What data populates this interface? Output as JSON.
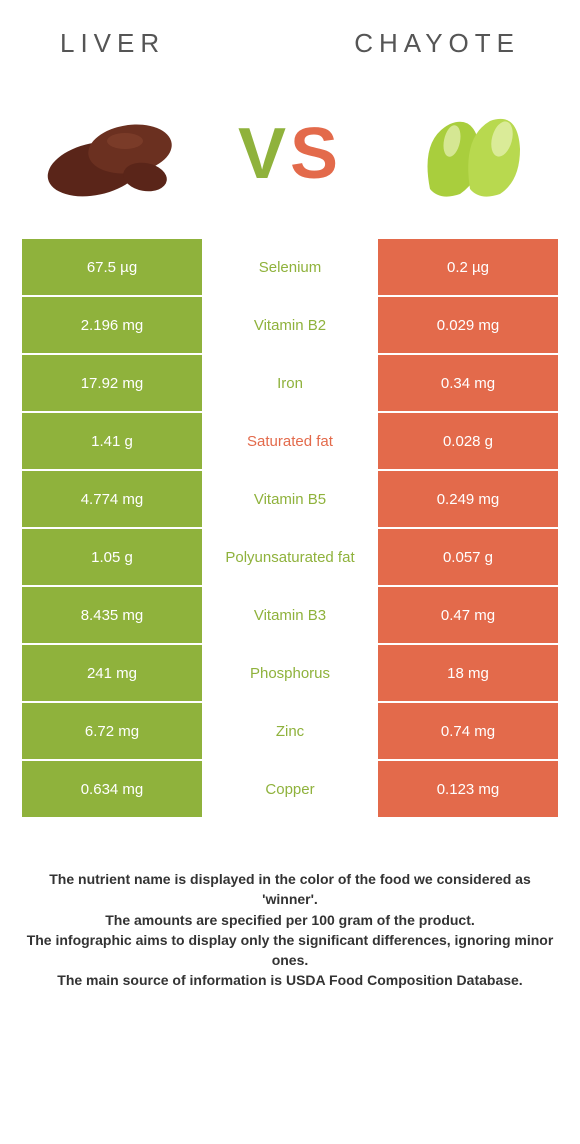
{
  "header": {
    "left_title": "Liver",
    "right_title": "Chayote"
  },
  "vs": {
    "v": "V",
    "s": "S"
  },
  "colors": {
    "left_bg": "#8fb23c",
    "right_bg": "#e36a4b",
    "mid_winner_left": "#8fb23c",
    "mid_winner_right": "#e36a4b"
  },
  "comparison": {
    "type": "table",
    "rows": [
      {
        "left": "67.5 µg",
        "label": "Selenium",
        "right": "0.2 µg",
        "winner": "left"
      },
      {
        "left": "2.196 mg",
        "label": "Vitamin B2",
        "right": "0.029 mg",
        "winner": "left"
      },
      {
        "left": "17.92 mg",
        "label": "Iron",
        "right": "0.34 mg",
        "winner": "left"
      },
      {
        "left": "1.41 g",
        "label": "Saturated fat",
        "right": "0.028 g",
        "winner": "right"
      },
      {
        "left": "4.774 mg",
        "label": "Vitamin B5",
        "right": "0.249 mg",
        "winner": "left"
      },
      {
        "left": "1.05 g",
        "label": "Polyunsaturated fat",
        "right": "0.057 g",
        "winner": "left"
      },
      {
        "left": "8.435 mg",
        "label": "Vitamin B3",
        "right": "0.47 mg",
        "winner": "left"
      },
      {
        "left": "241 mg",
        "label": "Phosphorus",
        "right": "18 mg",
        "winner": "left"
      },
      {
        "left": "6.72 mg",
        "label": "Zinc",
        "right": "0.74 mg",
        "winner": "left"
      },
      {
        "left": "0.634 mg",
        "label": "Copper",
        "right": "0.123 mg",
        "winner": "left"
      }
    ]
  },
  "footnotes": [
    "The nutrient name is displayed in the color of the food we considered as 'winner'.",
    "The amounts are specified per 100 gram of the product.",
    "The infographic aims to display only the significant differences, ignoring minor ones.",
    "The main source of information is USDA Food Composition Database."
  ]
}
